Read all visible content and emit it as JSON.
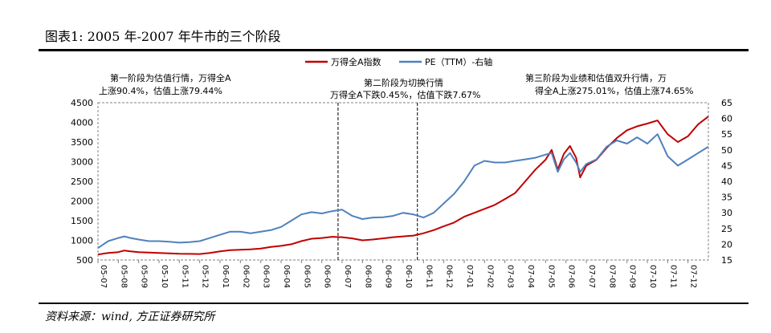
{
  "figure": {
    "title": "图表1:   2005 年-2007 年牛市的三个阶段",
    "source": "资料来源：wind, 方正证券研究所"
  },
  "chart_data": {
    "type": "line",
    "x_tick_labels": [
      "05-07",
      "05-08",
      "05-09",
      "05-10",
      "05-11",
      "05-12",
      "06-01",
      "06-02",
      "06-03",
      "06-04",
      "06-05",
      "06-06",
      "06-07",
      "06-08",
      "06-09",
      "06-10",
      "06-11",
      "06-12",
      "07-01",
      "07-02",
      "07-03",
      "07-04",
      "07-05",
      "07-06",
      "07-07",
      "07-08",
      "07-09",
      "07-10",
      "07-11",
      "07-12"
    ],
    "y_left": {
      "min": 500,
      "max": 4500,
      "ticks": [
        500,
        1000,
        1500,
        2000,
        2500,
        3000,
        3500,
        4000,
        4500
      ]
    },
    "y_right": {
      "min": 15,
      "max": 65,
      "ticks": [
        15,
        20,
        25,
        30,
        35,
        40,
        45,
        50,
        55,
        60,
        65
      ]
    },
    "legend_position": "top-center",
    "series": [
      {
        "name": "万得全A指数",
        "axis": "left",
        "color": "#c00000",
        "points": [
          [
            0,
            640
          ],
          [
            0.5,
            680
          ],
          [
            1,
            700
          ],
          [
            1.3,
            740
          ],
          [
            1.6,
            720
          ],
          [
            2,
            700
          ],
          [
            2.5,
            690
          ],
          [
            3,
            680
          ],
          [
            3.5,
            670
          ],
          [
            4,
            660
          ],
          [
            4.5,
            655
          ],
          [
            5,
            650
          ],
          [
            5.5,
            680
          ],
          [
            6,
            720
          ],
          [
            6.5,
            750
          ],
          [
            7,
            760
          ],
          [
            7.5,
            770
          ],
          [
            8,
            790
          ],
          [
            8.5,
            830
          ],
          [
            9,
            860
          ],
          [
            9.5,
            900
          ],
          [
            10,
            980
          ],
          [
            10.5,
            1040
          ],
          [
            11,
            1060
          ],
          [
            11.5,
            1090
          ],
          [
            12,
            1080
          ],
          [
            12.5,
            1050
          ],
          [
            13,
            1000
          ],
          [
            13.5,
            1020
          ],
          [
            14,
            1050
          ],
          [
            14.5,
            1080
          ],
          [
            15,
            1100
          ],
          [
            15.5,
            1120
          ],
          [
            16,
            1180
          ],
          [
            16.5,
            1260
          ],
          [
            17,
            1360
          ],
          [
            17.5,
            1450
          ],
          [
            18,
            1600
          ],
          [
            18.5,
            1700
          ],
          [
            19,
            1800
          ],
          [
            19.5,
            1900
          ],
          [
            20,
            2050
          ],
          [
            20.5,
            2200
          ],
          [
            21,
            2500
          ],
          [
            21.5,
            2800
          ],
          [
            22,
            3050
          ],
          [
            22.3,
            3300
          ],
          [
            22.6,
            2800
          ],
          [
            22.9,
            3200
          ],
          [
            23.2,
            3400
          ],
          [
            23.5,
            3100
          ],
          [
            23.7,
            2600
          ],
          [
            24,
            2900
          ],
          [
            24.5,
            3050
          ],
          [
            25,
            3350
          ],
          [
            25.5,
            3600
          ],
          [
            26,
            3800
          ],
          [
            26.5,
            3900
          ],
          [
            27,
            3970
          ],
          [
            27.5,
            4050
          ],
          [
            28,
            3700
          ],
          [
            28.5,
            3500
          ],
          [
            29,
            3650
          ],
          [
            29.5,
            3950
          ],
          [
            30,
            4150
          ]
        ]
      },
      {
        "name": "PE（TTM）-右轴",
        "axis": "right",
        "color": "#4f81bd",
        "points": [
          [
            0,
            18.8
          ],
          [
            0.5,
            21
          ],
          [
            1,
            22
          ],
          [
            1.3,
            22.5
          ],
          [
            1.6,
            22
          ],
          [
            2,
            21.5
          ],
          [
            2.5,
            21
          ],
          [
            3,
            21
          ],
          [
            3.5,
            20.8
          ],
          [
            4,
            20.5
          ],
          [
            4.5,
            20.7
          ],
          [
            5,
            21
          ],
          [
            5.5,
            22
          ],
          [
            6,
            23
          ],
          [
            6.5,
            24
          ],
          [
            7,
            24
          ],
          [
            7.5,
            23.5
          ],
          [
            8,
            24
          ],
          [
            8.5,
            24.5
          ],
          [
            9,
            25.5
          ],
          [
            9.5,
            27.5
          ],
          [
            10,
            29.5
          ],
          [
            10.5,
            30.2
          ],
          [
            11,
            29.8
          ],
          [
            11.5,
            30.5
          ],
          [
            12,
            31
          ],
          [
            12.5,
            29
          ],
          [
            13,
            28
          ],
          [
            13.5,
            28.5
          ],
          [
            14,
            28.6
          ],
          [
            14.5,
            29
          ],
          [
            15,
            30
          ],
          [
            15.5,
            29.5
          ],
          [
            16,
            28.5
          ],
          [
            16.5,
            30
          ],
          [
            17,
            33
          ],
          [
            17.5,
            36
          ],
          [
            18,
            40
          ],
          [
            18.5,
            45
          ],
          [
            19,
            46.5
          ],
          [
            19.5,
            46
          ],
          [
            20,
            46
          ],
          [
            20.5,
            46.5
          ],
          [
            21,
            47
          ],
          [
            21.5,
            47.5
          ],
          [
            22,
            48.5
          ],
          [
            22.3,
            49
          ],
          [
            22.6,
            43
          ],
          [
            22.9,
            47
          ],
          [
            23.2,
            49
          ],
          [
            23.5,
            46
          ],
          [
            23.7,
            43
          ],
          [
            24,
            45.5
          ],
          [
            24.5,
            47
          ],
          [
            25,
            51
          ],
          [
            25.5,
            53
          ],
          [
            26,
            52
          ],
          [
            26.5,
            54
          ],
          [
            27,
            52
          ],
          [
            27.5,
            55
          ],
          [
            28,
            48
          ],
          [
            28.5,
            45
          ],
          [
            29,
            47
          ],
          [
            29.5,
            49
          ],
          [
            30,
            51
          ]
        ]
      }
    ],
    "phase_dividers_x": [
      11.8,
      15.7
    ],
    "annotations": [
      {
        "line1": "第一阶段为估值行情，万得全A",
        "line2": "上涨90.4%，估值上涨79.44%"
      },
      {
        "line1": "第二阶段为切换行情",
        "line2": "万得全A下跌0.45%，估值下跌7.67%"
      },
      {
        "line1": "第三阶段为业绩和估值双升行情，万",
        "line2": "得全A上涨275.01%，估值上涨74.65%"
      }
    ]
  }
}
